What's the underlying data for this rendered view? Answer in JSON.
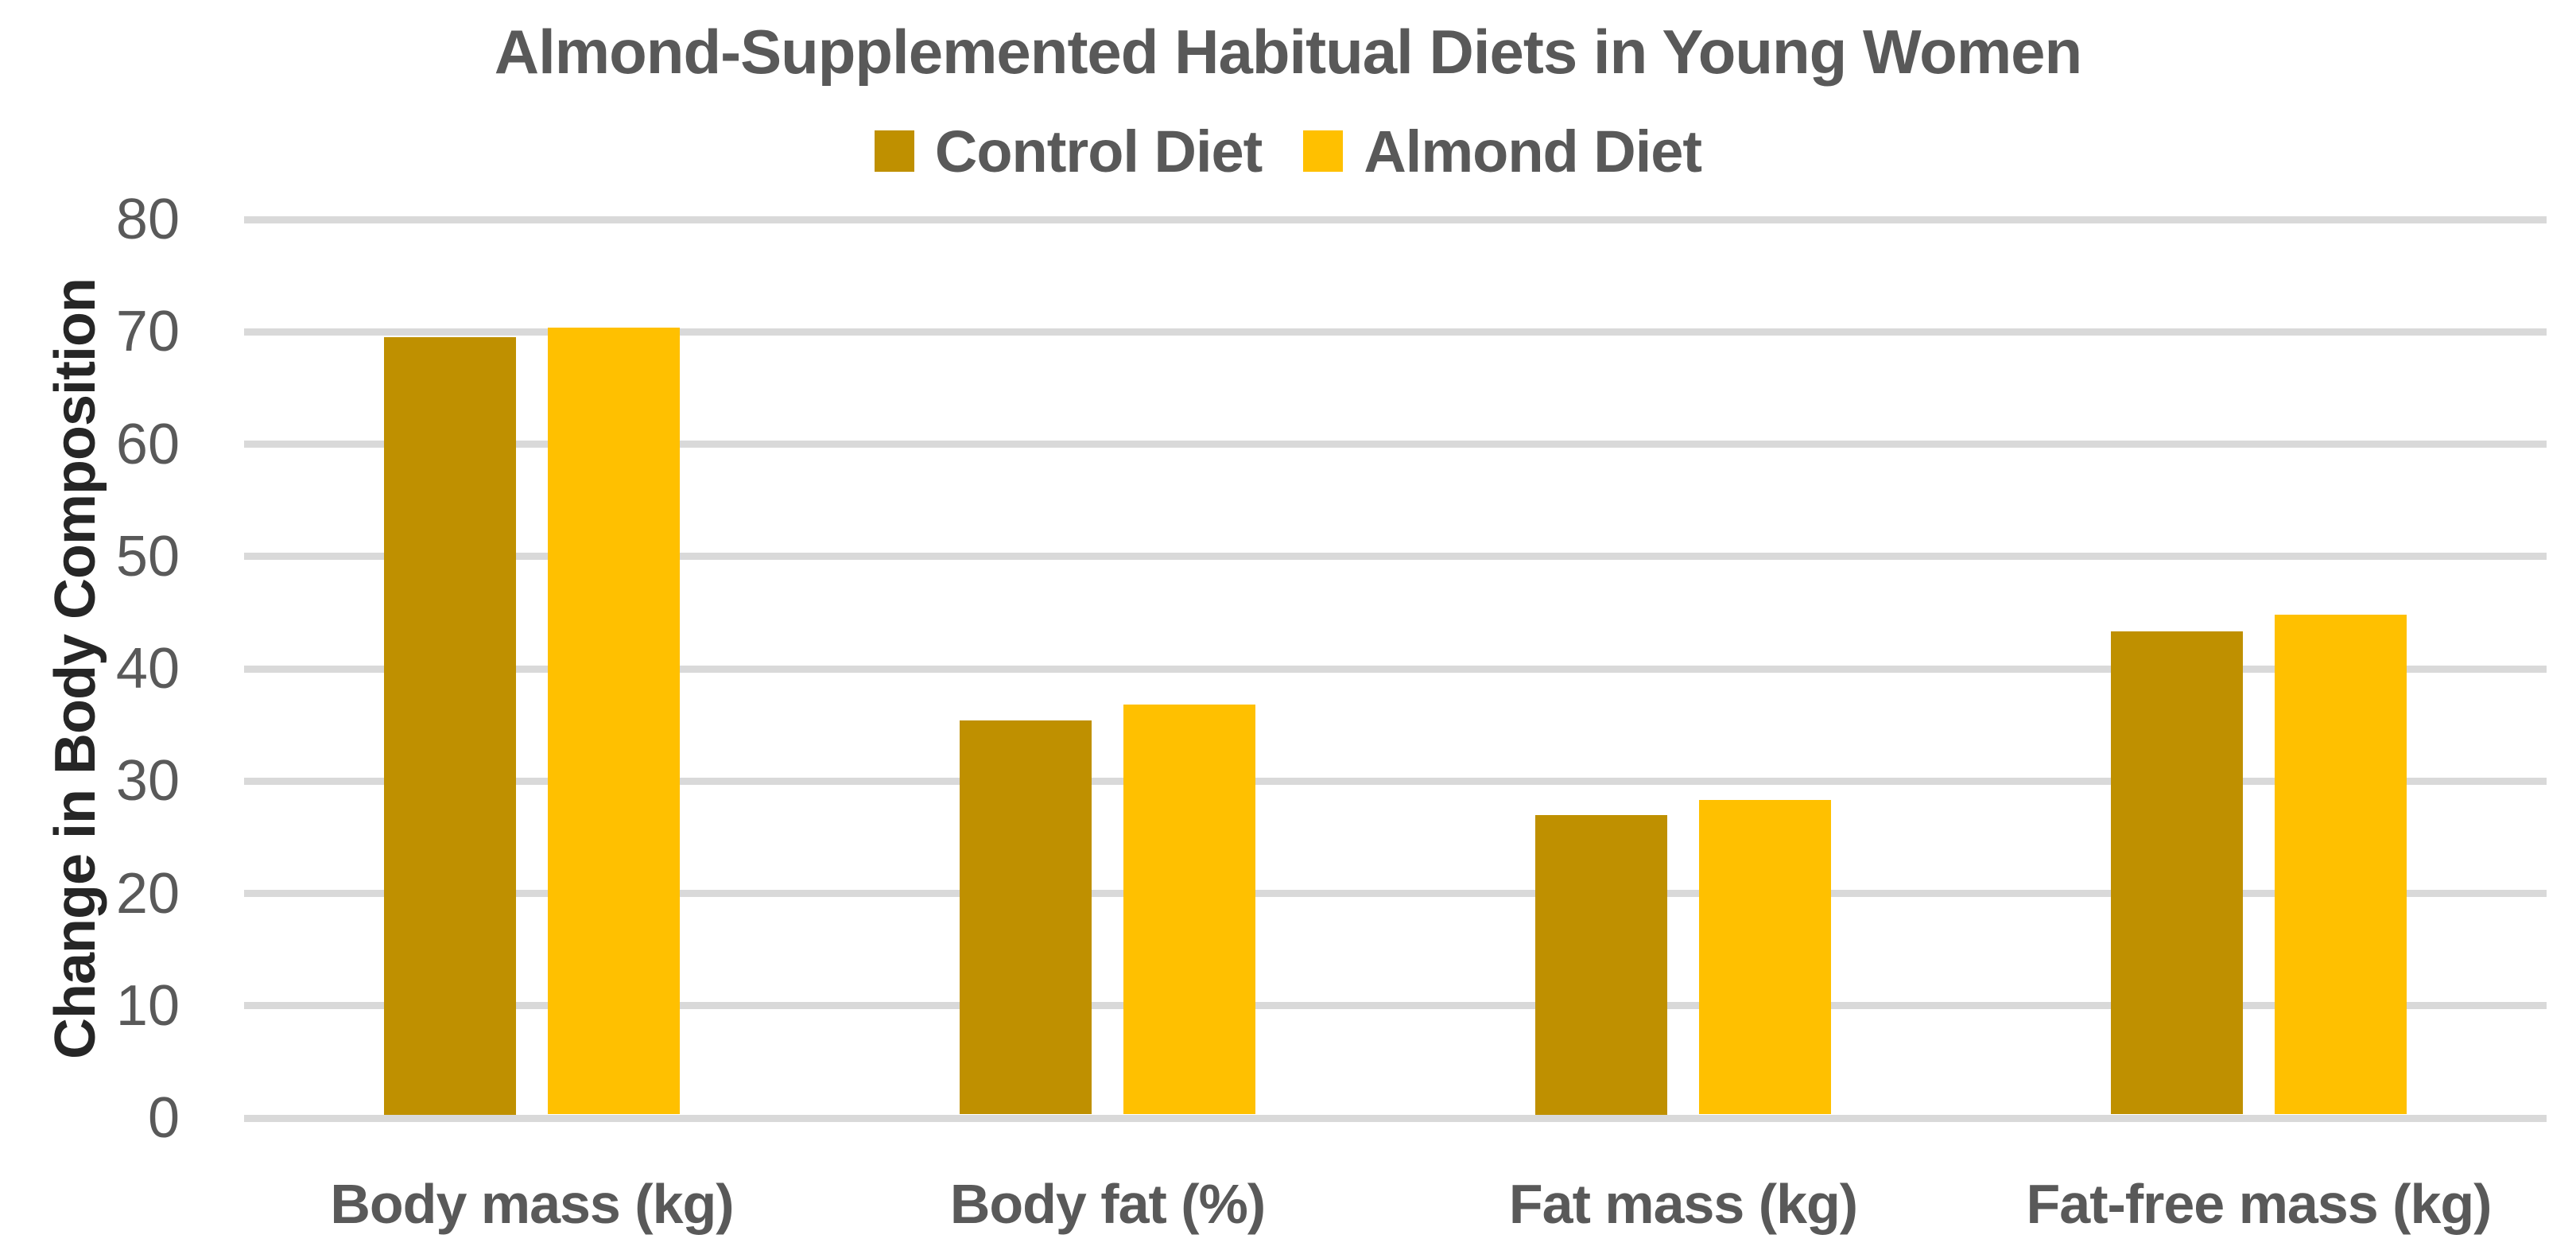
{
  "chart_data": {
    "type": "bar",
    "title": "Almond-Supplemented Habitual Diets in Young Women",
    "xlabel": "",
    "ylabel": "Change in Body Composition",
    "categories": [
      "Body mass (kg)",
      "Body fat (%)",
      "Fat mass (kg)",
      "Fat-free mass (kg)"
    ],
    "series": [
      {
        "name": "Control Diet",
        "color": "#BF9000",
        "values": [
          69.5,
          35.4,
          27.0,
          43.3
        ]
      },
      {
        "name": "Almond Diet",
        "color": "#FFC000",
        "values": [
          70.4,
          36.8,
          28.3,
          44.8
        ]
      }
    ],
    "ylim": [
      0,
      80
    ],
    "yticks": [
      0,
      10,
      20,
      30,
      40,
      50,
      60,
      70,
      80
    ],
    "grid": "horizontal",
    "legend_position": "top-center"
  },
  "colors": {
    "gridline": "#D9D9D9",
    "axis_line": "#D9D9D9",
    "tick_text": "#595959",
    "title_text": "#595959",
    "category_text": "#595959",
    "y_axis_title_text": "#262626",
    "background": "#FFFFFF"
  }
}
